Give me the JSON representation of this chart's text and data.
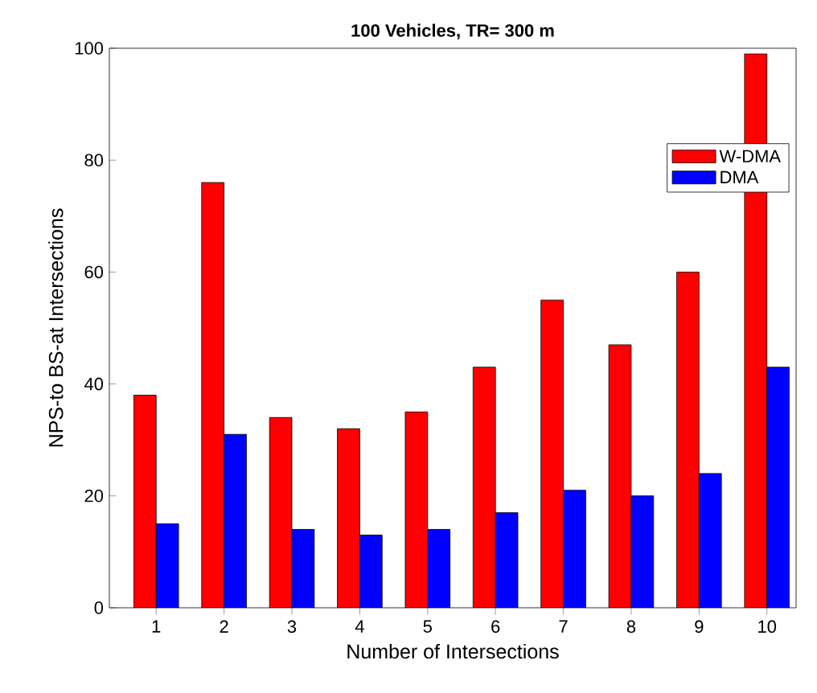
{
  "chart_data": {
    "type": "bar",
    "title": "100 Vehicles, TR= 300 m",
    "xlabel": "Number of Intersections",
    "ylabel": "NPS-to BS-at Intersections",
    "categories": [
      "1",
      "2",
      "3",
      "4",
      "5",
      "6",
      "7",
      "8",
      "9",
      "10"
    ],
    "series": [
      {
        "name": "W-DMA",
        "color": "#ff0000",
        "values": [
          38,
          76,
          34,
          32,
          35,
          43,
          55,
          47,
          60,
          99
        ]
      },
      {
        "name": "DMA",
        "color": "#0000ff",
        "values": [
          15,
          31,
          14,
          13,
          14,
          17,
          21,
          20,
          24,
          43
        ]
      }
    ],
    "ylim": [
      0,
      100
    ],
    "yticks": [
      0,
      20,
      40,
      60,
      80,
      100
    ],
    "legend": "top right",
    "grid": false
  }
}
